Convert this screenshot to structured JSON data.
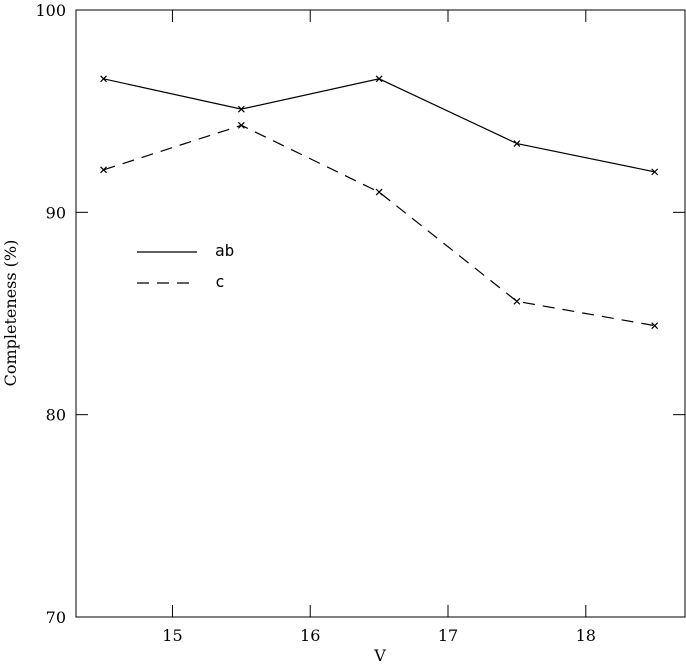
{
  "chart_data": {
    "type": "line",
    "x_label": "V",
    "y_label": "Completeness (%)",
    "x": [
      14.5,
      15.5,
      16.5,
      17.5,
      18.5
    ],
    "series": [
      {
        "name": "ab",
        "color": "#000000",
        "dash": "solid",
        "values": [
          96.6,
          95.1,
          96.6,
          93.4,
          92.0
        ]
      },
      {
        "name": "c",
        "color": "#000000",
        "dash": "dashed",
        "values": [
          92.1,
          94.3,
          91.0,
          85.6,
          84.4
        ]
      }
    ],
    "xlim": [
      14.3,
      18.72
    ],
    "xticks": [
      15,
      16,
      17,
      18
    ],
    "ylim": [
      70,
      100
    ],
    "yticks": [
      70,
      80,
      90,
      100
    ]
  }
}
